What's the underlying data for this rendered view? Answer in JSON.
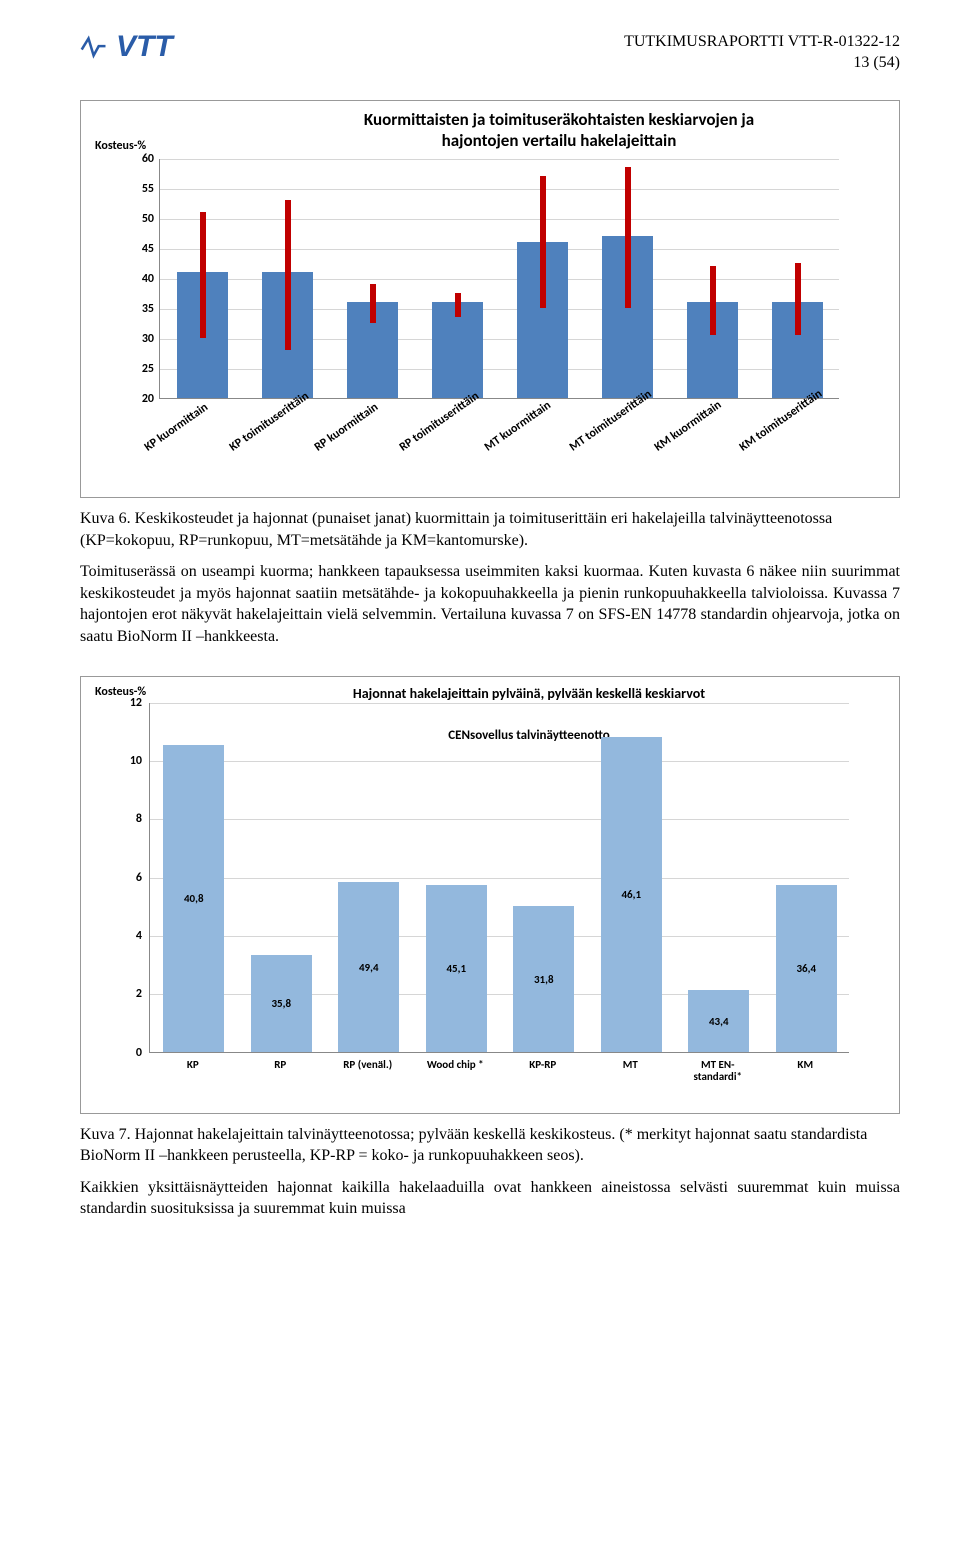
{
  "header": {
    "logo_text": "VTT",
    "doc_id": "TUTKIMUSRAPORTTI VTT-R-01322-12",
    "page_label": "13 (54)"
  },
  "chart1": {
    "y_axis_title": "Kosteus-%",
    "title_line1": "Kuormittaisten ja toimituseräkohtaisten keskiarvojen ja",
    "title_line2": "hajontojen vertailu hakelajeittain",
    "ymin": 20,
    "ymax": 60,
    "ytick_step": 5,
    "bar_color": "#4f81bd",
    "err_color": "#c00000",
    "err_width": 6,
    "grid_color": "#d6d6d6",
    "categories": [
      {
        "label": "KP kuormittain",
        "mean": 41.0,
        "err_lo": 30.0,
        "err_hi": 51.0
      },
      {
        "label": "KP toimituserittäin",
        "mean": 41.0,
        "err_lo": 28.0,
        "err_hi": 53.0
      },
      {
        "label": "RP kuormittain",
        "mean": 36.0,
        "err_lo": 32.5,
        "err_hi": 39.0
      },
      {
        "label": "RP toimituserittäin",
        "mean": 36.0,
        "err_lo": 33.5,
        "err_hi": 37.5
      },
      {
        "label": "MT kuormittain",
        "mean": 46.0,
        "err_lo": 35.0,
        "err_hi": 57.0
      },
      {
        "label": "MT toimituserittäin",
        "mean": 47.0,
        "err_lo": 35.0,
        "err_hi": 58.5
      },
      {
        "label": "KM kuormittain",
        "mean": 36.0,
        "err_lo": 30.5,
        "err_hi": 42.0
      },
      {
        "label": "KM toimituserittäin",
        "mean": 36.0,
        "err_lo": 30.5,
        "err_hi": 42.5
      }
    ]
  },
  "caption1": "Kuva 6. Keskikosteudet ja hajonnat (punaiset janat) kuormittain ja toimituserittäin eri hakelajeilla talvinäytteenotossa (KP=kokopuu, RP=runkopuu, MT=metsätähde ja KM=kantomurske).",
  "para1": "Toimituserässä on useampi kuorma; hankkeen tapauksessa useimmiten kaksi kuormaa. Kuten kuvasta 6 näkee niin suurimmat keskikosteudet ja myös hajonnat saatiin metsätähde- ja kokopuuhakkeella ja pienin runkopuuhakkeella talvioloissa. Kuvassa 7 hajontojen erot näkyvät hakelajeittain vielä selvemmin. Vertailuna kuvassa 7 on SFS-EN 14778 standardin ohjearvoja, jotka on saatu BioNorm II –hankkeesta.",
  "chart2": {
    "y_axis_title": "Kosteus-%",
    "title": "Hajonnat hakelajeittain pylväinä, pylvään keskellä keskiarvot",
    "subtitle": "CENsovellus talvinäytteenotto",
    "ymin": 0,
    "ymax": 12,
    "ytick_step": 2,
    "bar_color": "#93b8dd",
    "grid_color": "#d6d6d6",
    "categories": [
      {
        "label": "KP",
        "value": 10.5,
        "mean_label": "40,8"
      },
      {
        "label": "RP",
        "value": 3.3,
        "mean_label": "35,8"
      },
      {
        "label": "RP (venäl.)",
        "value": 5.8,
        "mean_label": "49,4"
      },
      {
        "label": "Wood chip *",
        "value": 5.7,
        "mean_label": "45,1"
      },
      {
        "label": "KP-RP",
        "value": 5.0,
        "mean_label": "31,8"
      },
      {
        "label": "MT",
        "value": 10.8,
        "mean_label": "46,1"
      },
      {
        "label": "MT EN-\nstandardi*",
        "value": 2.1,
        "mean_label": "43,4"
      },
      {
        "label": "KM",
        "value": 5.7,
        "mean_label": "36,4"
      }
    ]
  },
  "caption2": "Kuva 7. Hajonnat hakelajeittain talvinäytteenotossa; pylvään keskellä keskikosteus. (* merkityt hajonnat saatu standardista BioNorm II –hankkeen perusteella, KP-RP = koko- ja runkopuuhakkeen seos).",
  "para2": "Kaikkien yksittäisnäytteiden hajonnat kaikilla hakelaaduilla ovat hankkeen aineistossa selvästi suuremmat kuin muissa standardin suosituksissa ja suuremmat kuin muissa"
}
